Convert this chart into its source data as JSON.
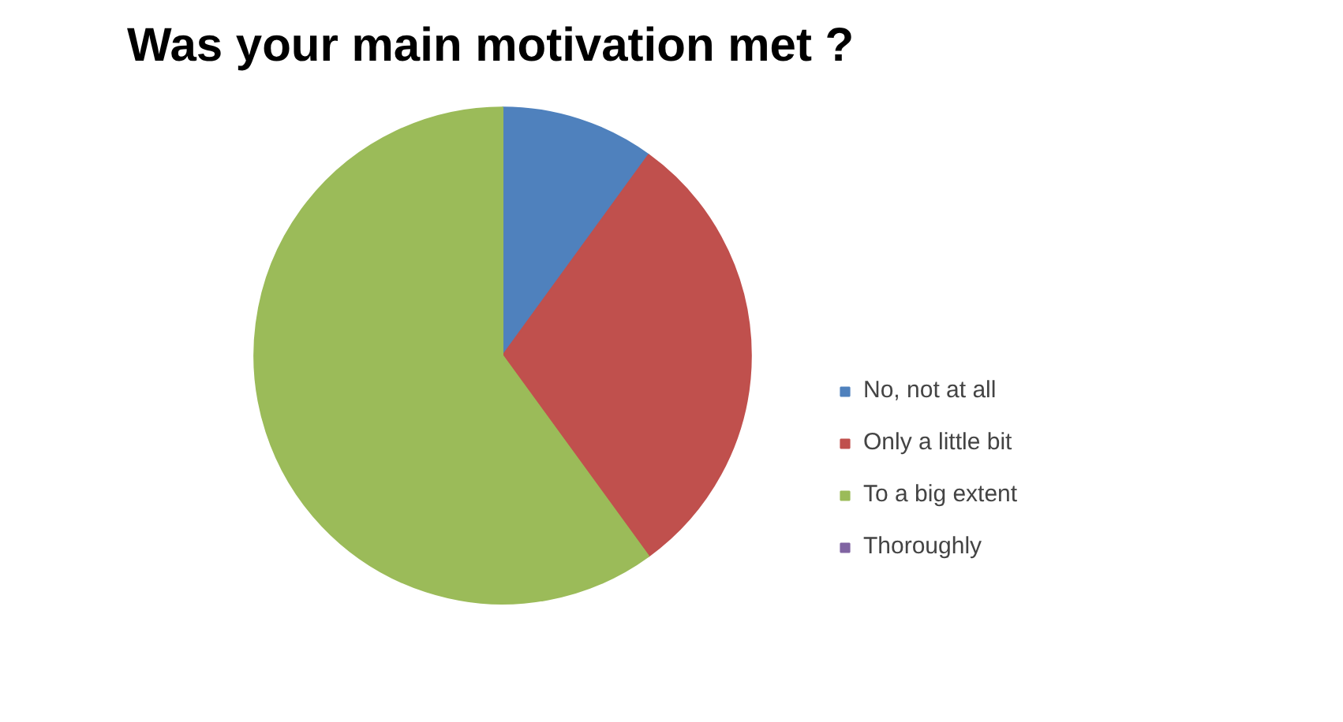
{
  "chart_data": {
    "type": "pie",
    "title": "Was your main motivation met ?",
    "categories": [
      "No, not at all",
      "Only a little bit",
      "To a big extent",
      "Thoroughly"
    ],
    "values": [
      10,
      30,
      60,
      0
    ],
    "colors": [
      "#4f81bd",
      "#c0504d",
      "#9bbb59",
      "#8064a2"
    ],
    "legend": "right"
  }
}
